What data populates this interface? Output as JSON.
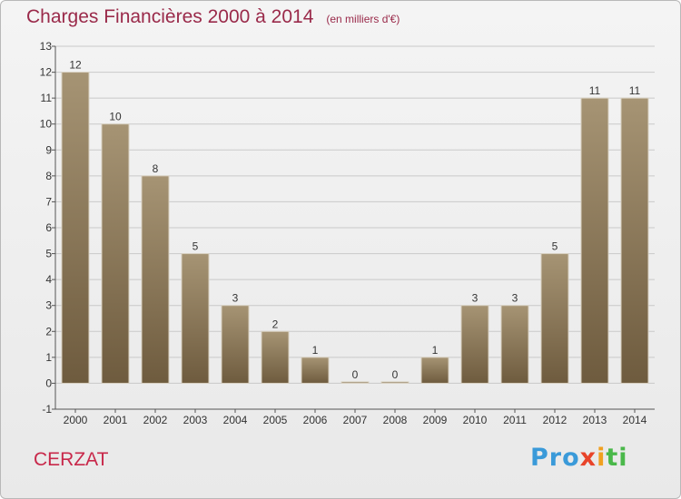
{
  "header": {
    "title": "Charges Financières 2000 à 2014",
    "unit": "(en milliers d'€)"
  },
  "footer": {
    "commune": "CERZAT",
    "logo_text": [
      "Pro",
      "x",
      "i",
      "ti"
    ]
  },
  "colors": {
    "bar_top": "#a69474",
    "bar_bottom": "#6e5b3e",
    "title": "#9a2a4a",
    "commune": "#c8284a"
  },
  "chart_data": {
    "type": "bar",
    "title": "Charges Financières 2000 à 2014",
    "subtitle": "(en milliers d'€)",
    "categories": [
      "2000",
      "2001",
      "2002",
      "2003",
      "2004",
      "2005",
      "2006",
      "2007",
      "2008",
      "2009",
      "2010",
      "2011",
      "2012",
      "2013",
      "2014"
    ],
    "values": [
      12,
      10,
      8,
      5,
      3,
      2,
      1,
      0,
      0,
      1,
      3,
      3,
      5,
      11,
      11
    ],
    "ylim": [
      -1,
      13
    ],
    "yticks": [
      -1,
      0,
      1,
      2,
      3,
      4,
      5,
      6,
      7,
      8,
      9,
      10,
      11,
      12,
      13
    ],
    "grid": true,
    "legend": "none"
  }
}
